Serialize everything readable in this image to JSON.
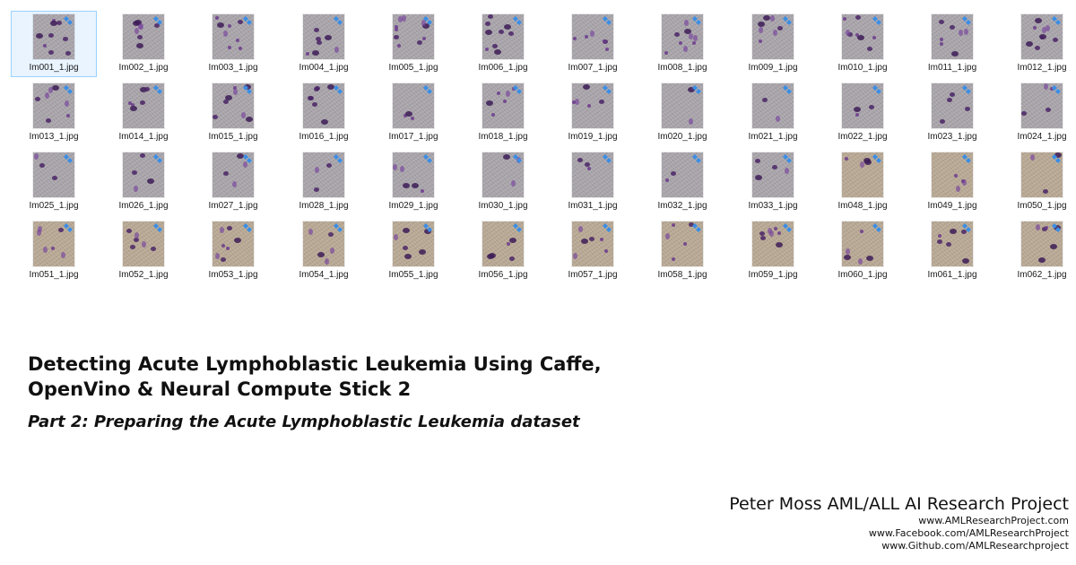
{
  "explorer": {
    "selected_index": 0,
    "files": [
      {
        "name": "Im001_1.jpg",
        "tone": "grey",
        "density": 9
      },
      {
        "name": "Im002_1.jpg",
        "tone": "grey",
        "density": 8
      },
      {
        "name": "Im003_1.jpg",
        "tone": "grey",
        "density": 8
      },
      {
        "name": "Im004_1.jpg",
        "tone": "grey",
        "density": 7
      },
      {
        "name": "Im005_1.jpg",
        "tone": "grey",
        "density": 10
      },
      {
        "name": "Im006_1.jpg",
        "tone": "grey",
        "density": 9
      },
      {
        "name": "Im007_1.jpg",
        "tone": "grey",
        "density": 6
      },
      {
        "name": "Im008_1.jpg",
        "tone": "grey",
        "density": 9
      },
      {
        "name": "Im009_1.jpg",
        "tone": "grey",
        "density": 7
      },
      {
        "name": "Im010_1.jpg",
        "tone": "grey",
        "density": 8
      },
      {
        "name": "Im011_1.jpg",
        "tone": "grey",
        "density": 7
      },
      {
        "name": "Im012_1.jpg",
        "tone": "grey",
        "density": 9
      },
      {
        "name": "Im013_1.jpg",
        "tone": "grey",
        "density": 7
      },
      {
        "name": "Im014_1.jpg",
        "tone": "grey",
        "density": 6
      },
      {
        "name": "Im015_1.jpg",
        "tone": "grey",
        "density": 8
      },
      {
        "name": "Im016_1.jpg",
        "tone": "grey",
        "density": 7
      },
      {
        "name": "Im017_1.jpg",
        "tone": "grey",
        "density": 3
      },
      {
        "name": "Im018_1.jpg",
        "tone": "grey",
        "density": 6
      },
      {
        "name": "Im019_1.jpg",
        "tone": "grey",
        "density": 5
      },
      {
        "name": "Im020_1.jpg",
        "tone": "grey",
        "density": 2
      },
      {
        "name": "Im021_1.jpg",
        "tone": "grey",
        "density": 2
      },
      {
        "name": "Im022_1.jpg",
        "tone": "grey",
        "density": 3
      },
      {
        "name": "Im023_1.jpg",
        "tone": "grey",
        "density": 4
      },
      {
        "name": "Im024_1.jpg",
        "tone": "grey",
        "density": 4
      },
      {
        "name": "Im025_1.jpg",
        "tone": "grey",
        "density": 3
      },
      {
        "name": "Im026_1.jpg",
        "tone": "grey",
        "density": 4
      },
      {
        "name": "Im027_1.jpg",
        "tone": "grey",
        "density": 4
      },
      {
        "name": "Im028_1.jpg",
        "tone": "grey",
        "density": 3
      },
      {
        "name": "Im029_1.jpg",
        "tone": "grey",
        "density": 5
      },
      {
        "name": "Im030_1.jpg",
        "tone": "grey",
        "density": 3
      },
      {
        "name": "Im031_1.jpg",
        "tone": "grey",
        "density": 3
      },
      {
        "name": "Im032_1.jpg",
        "tone": "grey",
        "density": 2
      },
      {
        "name": "Im033_1.jpg",
        "tone": "grey",
        "density": 4
      },
      {
        "name": "Im048_1.jpg",
        "tone": "tan",
        "density": 4
      },
      {
        "name": "Im049_1.jpg",
        "tone": "tan",
        "density": 4
      },
      {
        "name": "Im050_1.jpg",
        "tone": "tan",
        "density": 3
      },
      {
        "name": "Im051_1.jpg",
        "tone": "tan",
        "density": 6
      },
      {
        "name": "Im052_1.jpg",
        "tone": "tan",
        "density": 6
      },
      {
        "name": "Im053_1.jpg",
        "tone": "tan",
        "density": 7
      },
      {
        "name": "Im054_1.jpg",
        "tone": "tan",
        "density": 5
      },
      {
        "name": "Im055_1.jpg",
        "tone": "tan",
        "density": 6
      },
      {
        "name": "Im056_1.jpg",
        "tone": "tan",
        "density": 5
      },
      {
        "name": "Im057_1.jpg",
        "tone": "tan",
        "density": 6
      },
      {
        "name": "Im058_1.jpg",
        "tone": "tan",
        "density": 5
      },
      {
        "name": "Im059_1.jpg",
        "tone": "tan",
        "density": 7
      },
      {
        "name": "Im060_1.jpg",
        "tone": "tan",
        "density": 5
      },
      {
        "name": "Im061_1.jpg",
        "tone": "tan",
        "density": 6
      },
      {
        "name": "Im062_1.jpg",
        "tone": "tan",
        "density": 6
      }
    ],
    "colors": {
      "selection_border": "#99d1ff",
      "selection_fill": "#e9f4ff",
      "badge_blue": "#3a8ee6",
      "cell_purple": "#4a2466"
    }
  },
  "title_block": {
    "title_line1": "Detecting Acute Lymphoblastic Leukemia Using Caffe,",
    "title_line2": "OpenVino & Neural Compute Stick 2",
    "subtitle": "Part 2: Preparing the Acute Lymphoblastic Leukemia dataset"
  },
  "footer": {
    "project_name": "Peter Moss AML/ALL AI Research Project",
    "links": [
      "www.AMLResearchProject.com",
      "www.Facebook.com/AMLResearchProject",
      "www.Github.com/AMLResearchproject"
    ]
  }
}
